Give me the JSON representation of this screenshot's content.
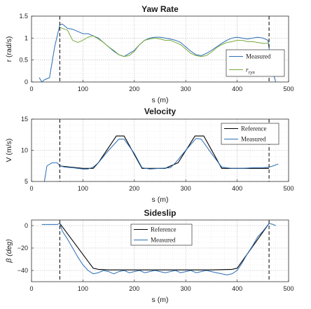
{
  "chart_data": [
    {
      "type": "line",
      "title": "Yaw Rate",
      "xlabel": "s (m)",
      "ylabel": "r (rad/s)",
      "xlim": [
        0,
        500
      ],
      "ylim": [
        0,
        1.5
      ],
      "xticks": [
        0,
        100,
        200,
        300,
        400,
        500
      ],
      "yticks": [
        0,
        0.5,
        1,
        1.5
      ],
      "xtick_labels": [
        "0",
        "100",
        "200",
        "300",
        "400",
        "500"
      ],
      "ytick_labels": [
        "0",
        "0.5",
        "1",
        "1.5"
      ],
      "grid": true,
      "legend_position": "bottom-right",
      "vlines": [
        55,
        462
      ],
      "series": [
        {
          "name": "Measured",
          "color": "#2a6db5",
          "x": [
            15,
            20,
            25,
            35,
            45,
            55,
            60,
            70,
            80,
            90,
            100,
            110,
            120,
            130,
            140,
            150,
            160,
            170,
            180,
            190,
            200,
            210,
            220,
            230,
            240,
            250,
            260,
            270,
            280,
            290,
            300,
            310,
            320,
            330,
            340,
            350,
            360,
            370,
            380,
            390,
            400,
            410,
            420,
            430,
            440,
            450,
            460,
            465,
            470,
            475
          ],
          "y": [
            0.1,
            0.0,
            0.05,
            0.1,
            0.8,
            1.3,
            1.32,
            1.22,
            1.2,
            1.15,
            1.1,
            1.1,
            1.05,
            1.0,
            0.9,
            0.8,
            0.7,
            0.62,
            0.58,
            0.65,
            0.72,
            0.85,
            0.95,
            1.0,
            1.02,
            1.02,
            1.0,
            0.98,
            0.95,
            0.9,
            0.8,
            0.7,
            0.62,
            0.6,
            0.65,
            0.72,
            0.8,
            0.88,
            0.95,
            1.0,
            1.02,
            1.0,
            0.98,
            1.0,
            1.02,
            1.0,
            0.95,
            0.5,
            0.2,
            0.0
          ]
        },
        {
          "name": "r_ryn",
          "label_main": "r",
          "label_sub": "ryn",
          "color": "#7aaa3c",
          "x": [
            55,
            60,
            70,
            80,
            90,
            100,
            110,
            120,
            130,
            140,
            150,
            160,
            170,
            180,
            190,
            200,
            210,
            220,
            230,
            240,
            250,
            260,
            270,
            280,
            290,
            300,
            310,
            320,
            330,
            340,
            350,
            360,
            370,
            380,
            390,
            400,
            410,
            420,
            430,
            440,
            450,
            462
          ],
          "y": [
            1.25,
            1.22,
            1.18,
            0.95,
            0.9,
            0.95,
            1.02,
            1.05,
            0.98,
            0.9,
            0.8,
            0.72,
            0.62,
            0.58,
            0.6,
            0.7,
            0.85,
            0.95,
            0.98,
            1.0,
            0.98,
            0.95,
            0.95,
            0.9,
            0.85,
            0.75,
            0.65,
            0.6,
            0.58,
            0.6,
            0.68,
            0.78,
            0.85,
            0.9,
            0.92,
            0.95,
            0.95,
            0.92,
            0.92,
            0.9,
            0.88,
            0.88
          ]
        }
      ]
    },
    {
      "type": "line",
      "title": "Velocity",
      "xlabel": "s (m)",
      "ylabel": "V (m/s)",
      "xlim": [
        0,
        500
      ],
      "ylim": [
        5,
        15
      ],
      "xticks": [
        0,
        100,
        200,
        300,
        400,
        500
      ],
      "yticks": [
        5,
        10,
        15
      ],
      "xtick_labels": [
        "0",
        "100",
        "200",
        "300",
        "400",
        "500"
      ],
      "ytick_labels": [
        "5",
        "10",
        "15"
      ],
      "grid": true,
      "legend_position": "top-right",
      "vlines": [
        55,
        462
      ],
      "series": [
        {
          "name": "Reference",
          "color": "#000000",
          "x": [
            55,
            65,
            100,
            120,
            130,
            165,
            180,
            215,
            235,
            260,
            285,
            318,
            335,
            370,
            380,
            462
          ],
          "y": [
            7.5,
            7.4,
            7.1,
            7.1,
            8.0,
            12.3,
            12.3,
            7.1,
            7.1,
            7.1,
            8.0,
            12.3,
            12.3,
            7.1,
            7.1,
            7.1
          ]
        },
        {
          "name": "Measured",
          "color": "#2a6db5",
          "x": [
            25,
            30,
            40,
            50,
            55,
            65,
            80,
            100,
            110,
            120,
            130,
            150,
            170,
            180,
            200,
            215,
            230,
            250,
            270,
            280,
            300,
            320,
            330,
            350,
            370,
            390,
            410,
            430,
            450,
            462,
            470,
            480
          ],
          "y": [
            5.0,
            7.5,
            8.0,
            8.0,
            7.5,
            7.3,
            7.2,
            7.0,
            7.0,
            7.3,
            8.0,
            10.0,
            11.8,
            11.8,
            9.5,
            7.2,
            7.0,
            7.1,
            7.2,
            8.0,
            10.0,
            11.9,
            11.8,
            9.5,
            7.3,
            7.1,
            7.1,
            7.2,
            7.2,
            7.3,
            7.5,
            7.8
          ]
        }
      ]
    },
    {
      "type": "line",
      "title": "Sideslip",
      "xlabel": "s (m)",
      "ylabel": "β (deg)",
      "xlim": [
        0,
        500
      ],
      "ylim": [
        -50,
        5
      ],
      "xticks": [
        0,
        100,
        200,
        300,
        400,
        500
      ],
      "yticks": [
        -40,
        -20,
        0
      ],
      "xtick_labels": [
        "0",
        "100",
        "200",
        "300",
        "400",
        "500"
      ],
      "ytick_labels": [
        "−40",
        "−20",
        "0"
      ],
      "grid": true,
      "legend_position": "top-center",
      "vlines": [
        55,
        462
      ],
      "series": [
        {
          "name": "Reference",
          "color": "#000000",
          "x": [
            55,
            120,
            130,
            150,
            200,
            250,
            300,
            350,
            390,
            400,
            462
          ],
          "y": [
            2,
            -38,
            -39,
            -39.5,
            -39.5,
            -39.5,
            -39.5,
            -39.5,
            -39,
            -38,
            2
          ]
        },
        {
          "name": "Measured",
          "color": "#2a6db5",
          "x": [
            20,
            30,
            40,
            50,
            55,
            60,
            70,
            80,
            90,
            100,
            110,
            120,
            130,
            140,
            150,
            160,
            170,
            180,
            190,
            200,
            210,
            220,
            230,
            240,
            250,
            260,
            270,
            280,
            290,
            300,
            310,
            320,
            330,
            340,
            350,
            360,
            370,
            380,
            390,
            400,
            410,
            420,
            430,
            440,
            450,
            462,
            470,
            475
          ],
          "y": [
            1,
            1,
            1,
            1,
            2,
            -5,
            -12,
            -20,
            -28,
            -35,
            -40,
            -43,
            -42,
            -40,
            -41,
            -43,
            -41,
            -40,
            -42,
            -41,
            -40,
            -42,
            -41,
            -40,
            -41,
            -42,
            -41,
            -40,
            -42,
            -41,
            -40,
            -42,
            -41,
            -40,
            -41,
            -42,
            -43,
            -44,
            -43,
            -40,
            -33,
            -25,
            -18,
            -10,
            -5,
            2,
            1,
            0
          ]
        }
      ]
    }
  ]
}
